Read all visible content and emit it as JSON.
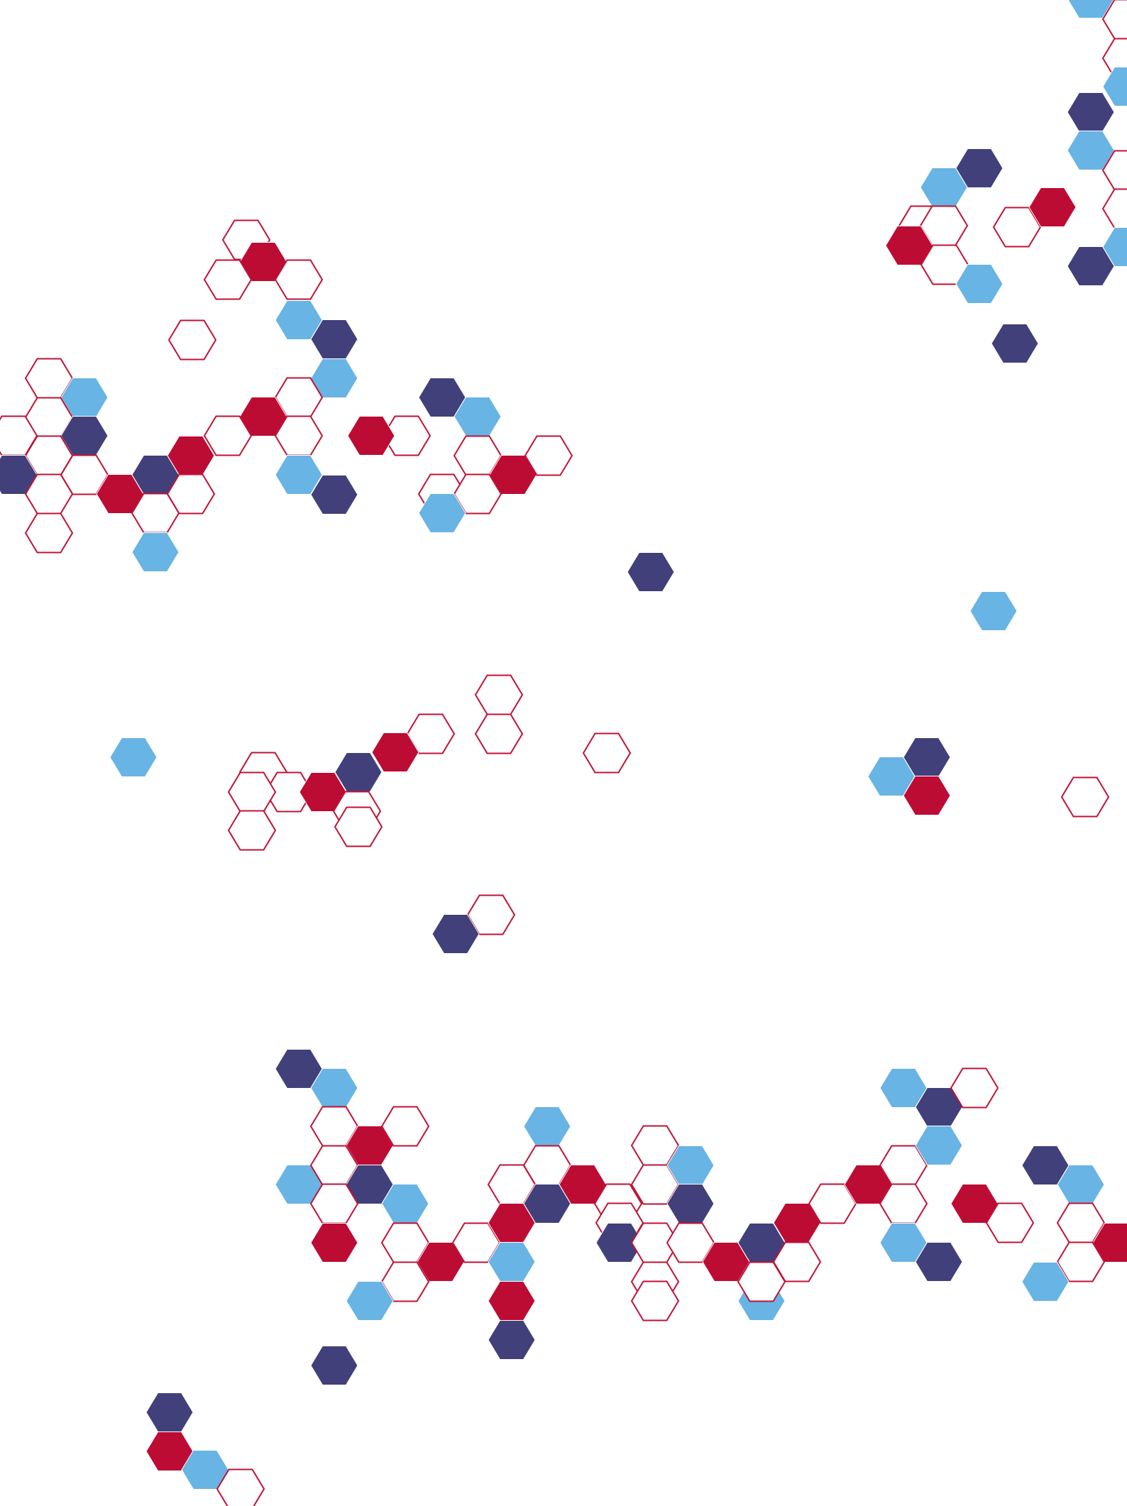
{
  "palette": {
    "background": "#ffffff",
    "navy": "#42407a",
    "sky": "#68b4e4",
    "red": "#bd0c33",
    "outline": "#c01236"
  },
  "pattern": {
    "name": "hexagon-cluster-pattern",
    "shape": "hexagon",
    "style": "mixed filled and outlined hexagons",
    "colors_used": [
      "navy",
      "sky",
      "red",
      "outline"
    ]
  }
}
